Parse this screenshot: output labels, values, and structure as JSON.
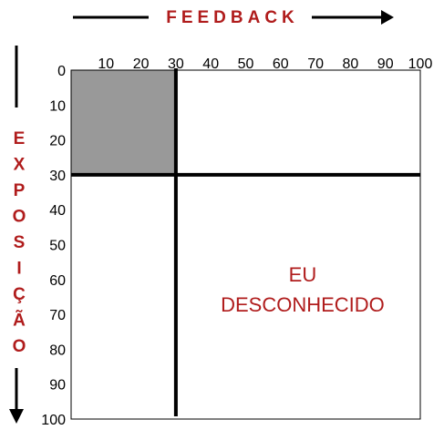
{
  "diagram": {
    "top_title": "FEEDBACK",
    "side_title": "EXPOSIÇÃO",
    "x_ticks": [
      "10",
      "20",
      "30",
      "40",
      "50",
      "60",
      "70",
      "80",
      "90",
      "100"
    ],
    "y_ticks": [
      "0",
      "10",
      "20",
      "30",
      "40",
      "50",
      "60",
      "70",
      "80",
      "90",
      "100"
    ],
    "scale_range": [
      0,
      100
    ],
    "feedback_level": 30,
    "exposure_level": 30,
    "quadrant_label": [
      "EU",
      "DESCONHECIDO"
    ],
    "colors": {
      "title": "#b01c1c",
      "label": "#b01c1c",
      "shaded": "#999999",
      "line": "#000000"
    }
  }
}
